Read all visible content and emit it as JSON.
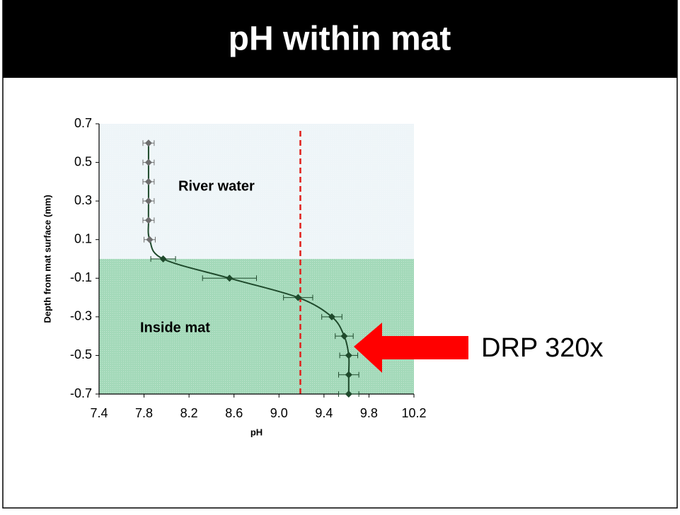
{
  "title": "pH within mat",
  "chart_data": {
    "type": "scatter",
    "xlabel": "pH",
    "ylabel": "Depth from mat surface (mm)",
    "xlim": [
      7.4,
      10.2
    ],
    "xticks": [
      7.4,
      7.8,
      8.2,
      8.6,
      {
        "value": 9,
        "label": "9.0"
      },
      9.4,
      9.8,
      10.2
    ],
    "ylim": [
      -0.7,
      0.7
    ],
    "yticks": [
      0.7,
      0.5,
      0.3,
      0.1,
      -0.1,
      -0.3,
      -0.5,
      -0.7
    ],
    "regions": [
      {
        "label": "River water",
        "range": [
          0,
          0.7
        ],
        "color": "#eef5f8",
        "marker_color": "#6f6f6f"
      },
      {
        "label": "Inside mat",
        "range": [
          -0.7,
          0
        ],
        "color": "#a3d9b9",
        "marker_color": "#1f4a2c"
      }
    ],
    "reference_line": {
      "x": 9.19,
      "color": "#e0201b"
    },
    "series": [
      {
        "color": "#1f4a2c",
        "x": [
          7.84,
          7.84,
          7.84,
          7.84,
          7.84,
          7.85,
          7.97,
          8.56,
          9.17,
          9.47,
          9.58,
          9.62,
          9.62,
          9.62
        ],
        "y": [
          0.6,
          0.5,
          0.4,
          0.3,
          0.2,
          0.1,
          0.0,
          -0.1,
          -0.2,
          -0.3,
          -0.4,
          -0.5,
          -0.6,
          -0.7
        ],
        "xerr": [
          0.05,
          0.05,
          0.05,
          0.05,
          0.05,
          0.05,
          0.11,
          0.24,
          0.13,
          0.09,
          0.08,
          0.08,
          0.09,
          0.09
        ]
      }
    ],
    "annotation": {
      "text": "DRP 320x",
      "color": "#ff0000"
    }
  }
}
